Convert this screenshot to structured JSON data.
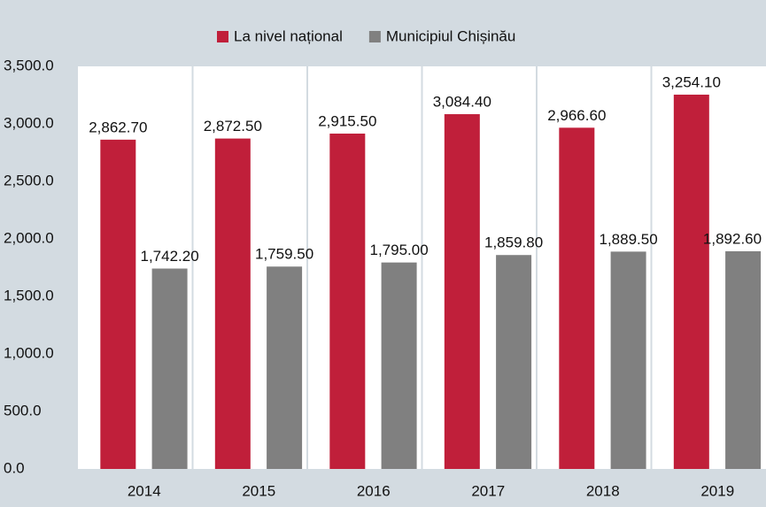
{
  "chart_data": {
    "type": "bar",
    "categories": [
      "2014",
      "2015",
      "2016",
      "2017",
      "2018",
      "2019"
    ],
    "series": [
      {
        "name": "La nivel național",
        "color": "#c01f3a",
        "values": [
          2862.7,
          2872.5,
          2915.5,
          3084.4,
          2966.6,
          3254.1
        ],
        "value_labels": [
          "2,862.70",
          "2,872.50",
          "2,915.50",
          "3,084.40",
          "2,966.60",
          "3,254.10"
        ]
      },
      {
        "name": "Municipiul Chișinău",
        "color": "#808080",
        "values": [
          1742.2,
          1759.5,
          1795.0,
          1859.8,
          1889.5,
          1892.6
        ],
        "value_labels": [
          "1,742.20",
          "1,759.50",
          "1,795.00",
          "1,859.80",
          "1,889.50",
          "1,892.60"
        ]
      }
    ],
    "ylim": [
      0,
      3500
    ],
    "yticks": [
      {
        "value": 0,
        "label": "0.0"
      },
      {
        "value": 500,
        "label": "500.0"
      },
      {
        "value": 1000,
        "label": "1,000.0"
      },
      {
        "value": 1500,
        "label": "1,500.0"
      },
      {
        "value": 2000,
        "label": "2,000.0"
      },
      {
        "value": 2500,
        "label": "2,500.0"
      },
      {
        "value": 3000,
        "label": "3,000.0"
      },
      {
        "value": 3500,
        "label": "3,500.0"
      }
    ],
    "grid": false,
    "legend": "top"
  }
}
